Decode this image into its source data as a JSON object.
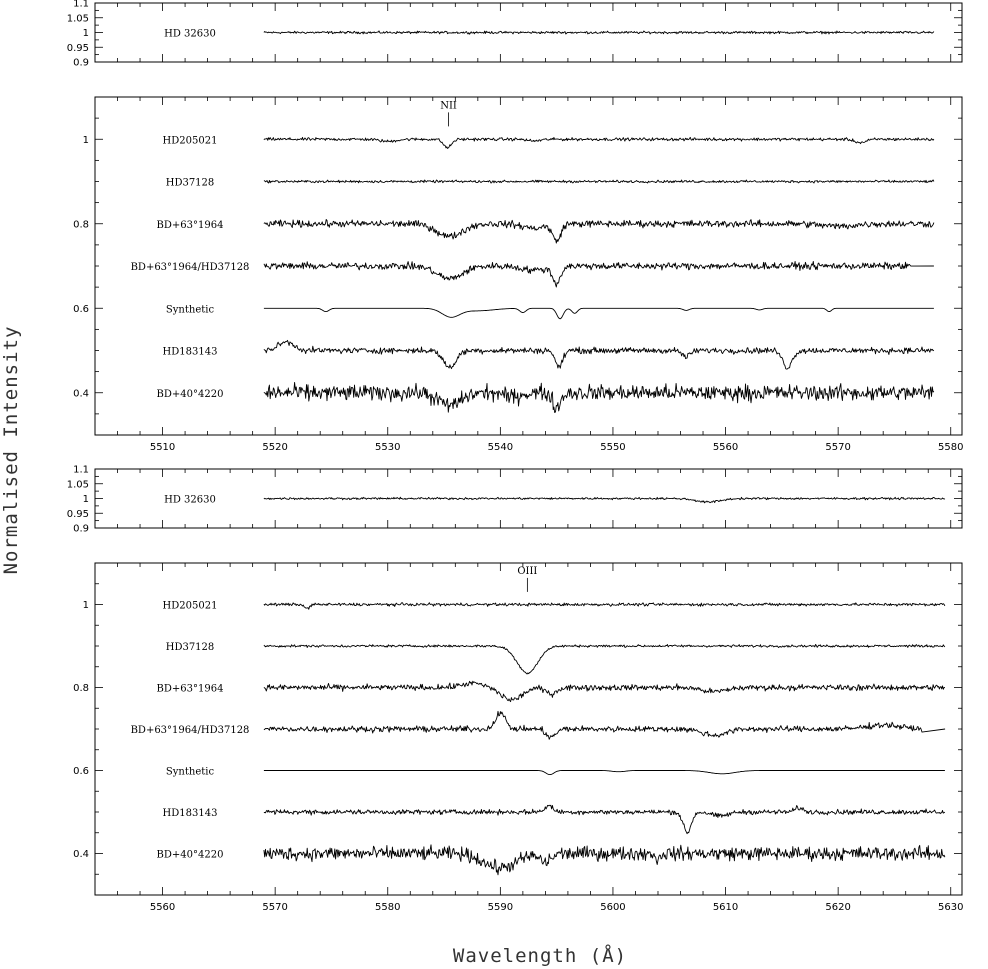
{
  "chart_data": [
    {
      "type": "line",
      "panel": "top reference",
      "xlim": [
        5504,
        5581
      ],
      "ylim": [
        0.9,
        1.1
      ],
      "xticks": [],
      "yticks": [
        0.9,
        0.95,
        1,
        1.05,
        1.1
      ],
      "ytick_labels": [
        "0.9",
        "0.95",
        "1",
        "1.05",
        "1.1"
      ],
      "series": [
        {
          "name": "HD 32630",
          "level": 1.0,
          "x_range": [
            5519,
            5578.5
          ],
          "noise": 0.0035,
          "features": []
        }
      ]
    },
    {
      "type": "line",
      "panel": "5520-5580 A",
      "xlim": [
        5504,
        5581
      ],
      "ylim": [
        0.3,
        1.1
      ],
      "xticks": [
        5510,
        5520,
        5530,
        5540,
        5550,
        5560,
        5570,
        5580
      ],
      "xtick_labels": [
        "5510",
        "5520",
        "5530",
        "5540",
        "5550",
        "5560",
        "5570",
        "5580"
      ],
      "yticks": [
        0.4,
        0.6,
        0.8,
        1
      ],
      "ytick_labels": [
        "0.4",
        "0.6",
        "0.8",
        "1"
      ],
      "line_id": {
        "label": "NII",
        "x": 5535.4,
        "y": 1.04
      },
      "series": [
        {
          "name": "HD205021",
          "level": 1.0,
          "x_range": [
            5519,
            5578.5
          ],
          "noise": 0.003,
          "features": [
            [
              5535.3,
              0.02,
              0.5
            ],
            [
              5530,
              0.005,
              1.0
            ],
            [
              5543,
              0.004,
              0.8
            ],
            [
              5572,
              0.008,
              0.7
            ]
          ]
        },
        {
          "name": "HD37128",
          "level": 0.9,
          "x_range": [
            5519,
            5578.5
          ],
          "noise": 0.0025,
          "features": []
        },
        {
          "name": "BD+63°1964",
          "level": 0.8,
          "x_range": [
            5519,
            5578.5
          ],
          "noise": 0.007,
          "features": [
            [
              5535.5,
              0.03,
              1.6
            ],
            [
              5545,
              0.04,
              0.5
            ],
            [
              5543,
              0.01,
              1.5
            ],
            [
              5570,
              0.006,
              2.0
            ]
          ]
        },
        {
          "name": "BD+63°1964/HD37128",
          "level": 0.7,
          "x_range": [
            5519,
            5576.5
          ],
          "noise": 0.007,
          "tail_to": 5578.5,
          "features": [
            [
              5535.5,
              0.03,
              1.6
            ],
            [
              5545,
              0.04,
              0.5
            ],
            [
              5543,
              0.01,
              1.5
            ]
          ]
        },
        {
          "name": "Synthetic",
          "level": 0.6,
          "x_range": [
            5519,
            5578.5
          ],
          "noise": 0,
          "features": [
            [
              5524.5,
              0.008,
              0.4
            ],
            [
              5535.6,
              0.02,
              1.1
            ],
            [
              5538,
              0.006,
              2.0
            ],
            [
              5542,
              0.01,
              0.4
            ],
            [
              5545.3,
              0.025,
              0.4
            ],
            [
              5546.6,
              0.012,
              0.35
            ],
            [
              5556.5,
              0.005,
              0.4
            ],
            [
              5563,
              0.004,
              0.4
            ],
            [
              5569.2,
              0.008,
              0.3
            ]
          ]
        },
        {
          "name": "HD183143",
          "level": 0.5,
          "x_range": [
            5519,
            5578.5
          ],
          "noise": 0.006,
          "features": [
            [
              5521,
              -0.02,
              1.0
            ],
            [
              5535.5,
              0.04,
              0.8
            ],
            [
              5545.2,
              0.04,
              0.45
            ],
            [
              5556.5,
              0.015,
              0.5
            ],
            [
              5565.5,
              0.04,
              0.6
            ]
          ]
        },
        {
          "name": "BD+40°4220",
          "level": 0.4,
          "x_range": [
            5519,
            5578.5
          ],
          "noise": 0.016,
          "features": [
            [
              5535.5,
              0.03,
              1.4
            ],
            [
              5545,
              0.035,
              0.5
            ],
            [
              5541,
              0.01,
              1.0
            ]
          ]
        }
      ]
    },
    {
      "type": "line",
      "panel": "middle reference",
      "xlim": [
        5554,
        5631
      ],
      "ylim": [
        0.9,
        1.1
      ],
      "xticks": [],
      "yticks": [
        0.9,
        0.95,
        1,
        1.05,
        1.1
      ],
      "ytick_labels": [
        "0.9",
        "0.95",
        "1",
        "1.05",
        "1.1"
      ],
      "series": [
        {
          "name": "HD 32630",
          "level": 1.0,
          "x_range": [
            5569,
            5629.5
          ],
          "noise": 0.003,
          "features": [
            [
              5608.5,
              0.012,
              1.5
            ]
          ]
        }
      ]
    },
    {
      "type": "line",
      "panel": "5570-5630 A",
      "xlim": [
        5554,
        5631
      ],
      "ylim": [
        0.3,
        1.1
      ],
      "xticks": [
        5560,
        5570,
        5580,
        5590,
        5600,
        5610,
        5620,
        5630
      ],
      "xtick_labels": [
        "5560",
        "5570",
        "5580",
        "5590",
        "5600",
        "5610",
        "5620",
        "5630"
      ],
      "yticks": [
        0.4,
        0.6,
        0.8,
        1
      ],
      "ytick_labels": [
        "0.4",
        "0.6",
        "0.8",
        "1"
      ],
      "line_id": {
        "label": "OIII",
        "x": 5592.4,
        "y": 1.04
      },
      "series": [
        {
          "name": "HD205021",
          "level": 1.0,
          "x_range": [
            5569,
            5629.5
          ],
          "noise": 0.003,
          "features": [
            [
              5572.8,
              0.01,
              0.3
            ]
          ]
        },
        {
          "name": "HD37128",
          "level": 0.9,
          "x_range": [
            5569,
            5629.5
          ],
          "noise": 0.0025,
          "features": [
            [
              5592.4,
              0.065,
              1.3
            ]
          ]
        },
        {
          "name": "BD+63°1964",
          "level": 0.8,
          "x_range": [
            5569,
            5629.5
          ],
          "noise": 0.006,
          "features": [
            [
              5587.5,
              -0.01,
              1.4
            ],
            [
              5591,
              0.03,
              1.3
            ],
            [
              5594.5,
              0.015,
              0.7
            ],
            [
              5609,
              0.01,
              1.5
            ]
          ]
        },
        {
          "name": "BD+63°1964/HD37128",
          "level": 0.7,
          "x_range": [
            5569,
            5627.5
          ],
          "noise": 0.006,
          "tail_to": 5629.5,
          "features": [
            [
              5590,
              -0.04,
              0.6
            ],
            [
              5594.5,
              0.02,
              0.6
            ],
            [
              5609,
              0.015,
              1.5
            ],
            [
              5624,
              -0.01,
              2.0
            ]
          ]
        },
        {
          "name": "Synthetic",
          "level": 0.6,
          "x_range": [
            5569,
            5629.5
          ],
          "noise": 0,
          "features": [
            [
              5594.4,
              0.01,
              0.5
            ],
            [
              5600.5,
              0.003,
              0.8
            ],
            [
              5609.7,
              0.008,
              1.6
            ]
          ]
        },
        {
          "name": "HD183143",
          "level": 0.5,
          "x_range": [
            5569,
            5629.5
          ],
          "noise": 0.005,
          "features": [
            [
              5594.3,
              -0.015,
              0.5
            ],
            [
              5606.6,
              0.05,
              0.5
            ],
            [
              5609.5,
              0.01,
              1.0
            ],
            [
              5616.5,
              -0.01,
              0.5
            ]
          ]
        },
        {
          "name": "BD+40°4220",
          "level": 0.4,
          "x_range": [
            5569,
            5629.5
          ],
          "noise": 0.014,
          "features": [
            [
              5590,
              0.035,
              2.0
            ],
            [
              5594,
              0.02,
              0.7
            ],
            [
              5604,
              0.02,
              0.2
            ]
          ]
        }
      ]
    }
  ],
  "axes": {
    "xlabel": "Wavelength (Å)",
    "ylabel": "Normalised Intensity"
  }
}
